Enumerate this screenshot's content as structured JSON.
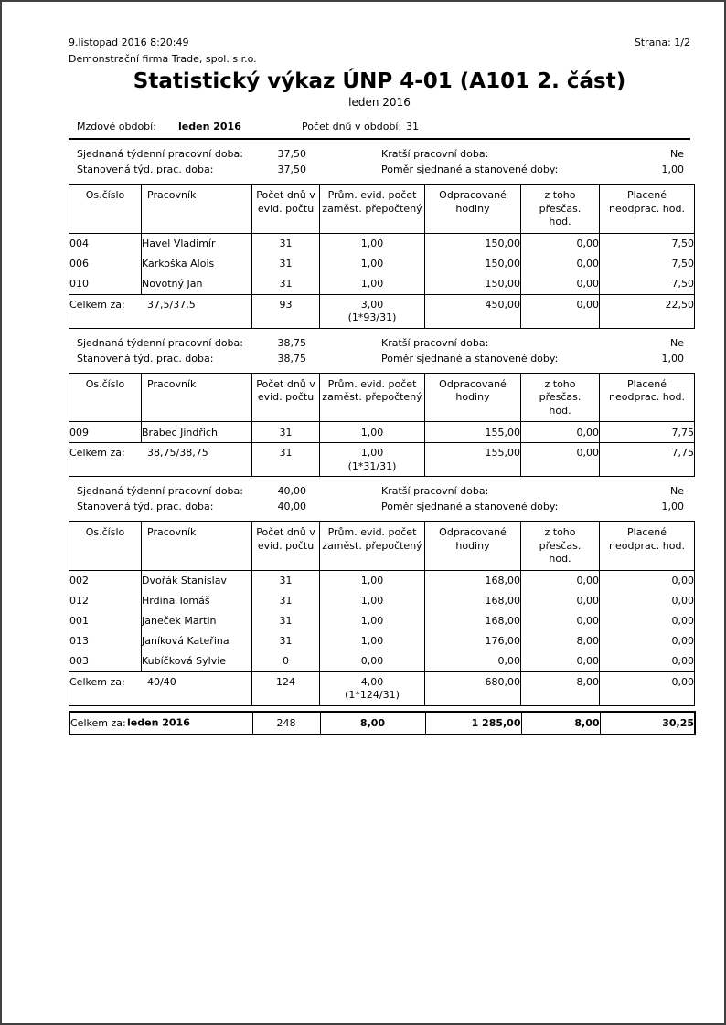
{
  "header": {
    "datetime": "9.listopad 2016  8:20:49",
    "page_number": "Strana: 1/2",
    "company": "Demonstrační firma Trade, spol. s r.o.",
    "title": "Statistický výkaz ÚNP 4-01 (A101 2. část)",
    "subtitle": "leden 2016"
  },
  "period": {
    "label": "Mzdové období:",
    "value": "leden 2016",
    "days_label": "Počet dnů v období:",
    "days_value": "31"
  },
  "labels": {
    "agreed_weekly": "Sjednaná týdenní pracovní doba:",
    "set_weekly": "Stanovená týd. prac. doba:",
    "shorter": "Kratší pracovní doba:",
    "ratio": "Poměr sjednané a stanovené doby:",
    "total": "Celkem za:"
  },
  "headers": [
    "Os.číslo",
    "Pracovník",
    "Počet dnů v\nevid. počtu",
    "Prům. evid. počet\nzaměst. přepočtený",
    "Odpracované\nhodiny",
    "z toho přesčas.\nhod.",
    "Placené\nneodprac. hod."
  ],
  "sections": [
    {
      "agreed_value": "37,50",
      "shorter_value": "Ne",
      "set_value": "37,50",
      "ratio_value": "1,00",
      "rows": [
        [
          "004",
          "Havel Vladimír",
          "31",
          "1,00",
          "150,00",
          "0,00",
          "7,50"
        ],
        [
          "006",
          "Karkoška Alois",
          "31",
          "1,00",
          "150,00",
          "0,00",
          "7,50"
        ],
        [
          "010",
          "Novotný Jan",
          "31",
          "1,00",
          "150,00",
          "0,00",
          "7,50"
        ]
      ],
      "total": {
        "group": "37,5/37,5",
        "days": "93",
        "avg": "3,00",
        "formula": "(1*93/31)",
        "worked": "450,00",
        "overtime": "0,00",
        "unpaid": "22,50"
      }
    },
    {
      "agreed_value": "38,75",
      "shorter_value": "Ne",
      "set_value": "38,75",
      "ratio_value": "1,00",
      "rows": [
        [
          "009",
          "Brabec Jindřich",
          "31",
          "1,00",
          "155,00",
          "0,00",
          "7,75"
        ]
      ],
      "total": {
        "group": "38,75/38,75",
        "days": "31",
        "avg": "1,00",
        "formula": "(1*31/31)",
        "worked": "155,00",
        "overtime": "0,00",
        "unpaid": "7,75"
      }
    },
    {
      "agreed_value": "40,00",
      "shorter_value": "Ne",
      "set_value": "40,00",
      "ratio_value": "1,00",
      "rows": [
        [
          "002",
          "Dvořák Stanislav",
          "31",
          "1,00",
          "168,00",
          "0,00",
          "0,00"
        ],
        [
          "012",
          "Hrdina Tomáš",
          "31",
          "1,00",
          "168,00",
          "0,00",
          "0,00"
        ],
        [
          "001",
          "Janeček Martin",
          "31",
          "1,00",
          "168,00",
          "0,00",
          "0,00"
        ],
        [
          "013",
          "Janíková Kateřina",
          "31",
          "1,00",
          "176,00",
          "8,00",
          "0,00"
        ],
        [
          "003",
          "Kubíčková Sylvie",
          "0",
          "0,00",
          "0,00",
          "0,00",
          "0,00"
        ]
      ],
      "total": {
        "group": "40/40",
        "days": "124",
        "avg": "4,00",
        "formula": "(1*124/31)",
        "worked": "680,00",
        "overtime": "8,00",
        "unpaid": "0,00"
      }
    }
  ],
  "grand_total": {
    "label": "Celkem za:",
    "period": "leden 2016",
    "days": "248",
    "avg": "8,00",
    "worked": "1 285,00",
    "overtime": "8,00",
    "unpaid": "30,25"
  },
  "colors": {
    "text": "#000000",
    "line": "#000000",
    "page_border": "#404040",
    "background": "#ffffff"
  }
}
